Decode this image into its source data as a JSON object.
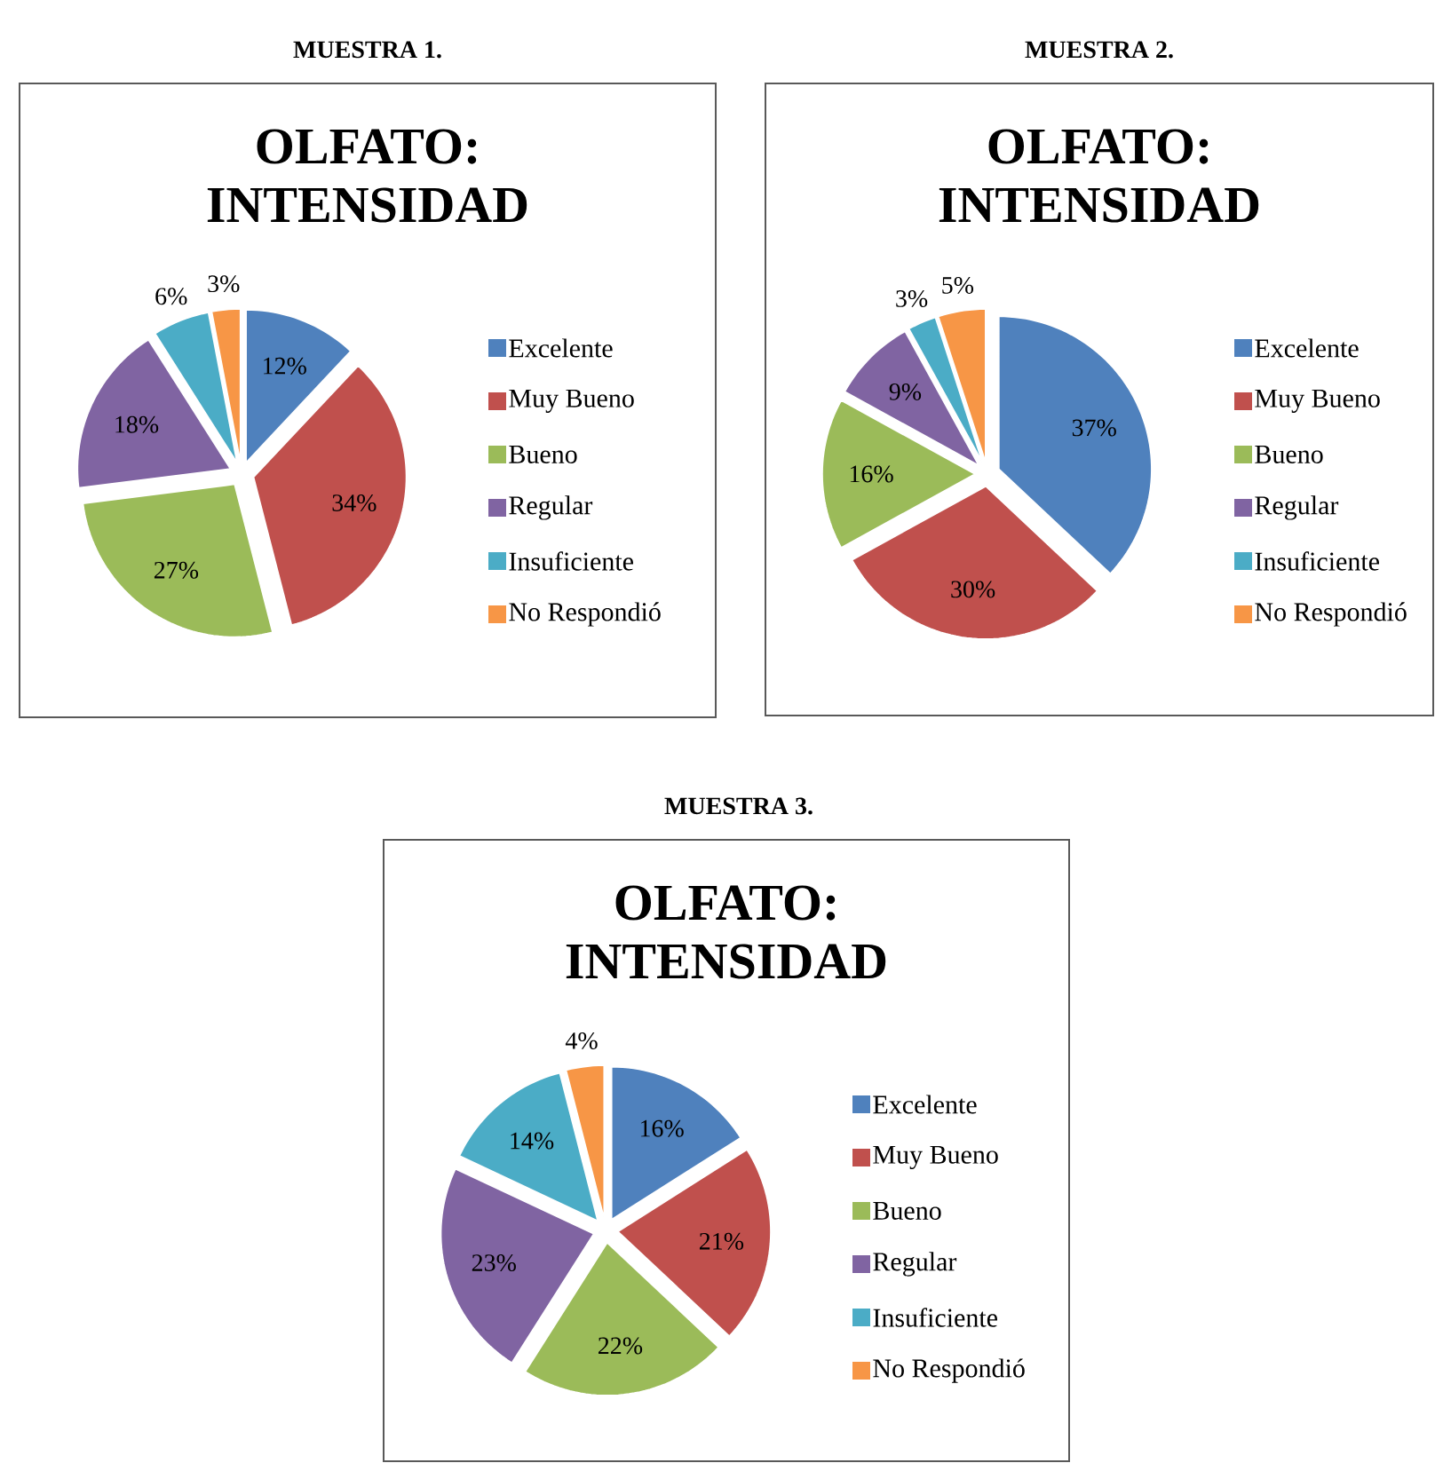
{
  "chart_data": [
    {
      "type": "pie",
      "title": "MUESTRA 1.",
      "subtitle": "OLFATO: INTENSIDAD",
      "categories": [
        "Excelente",
        "Muy Bueno",
        "Bueno",
        "Regular",
        "Insuficiente",
        "No Respondió"
      ],
      "values": [
        12,
        34,
        27,
        18,
        6,
        3
      ],
      "value_labels": [
        "12%",
        "34%",
        "27%",
        "18%",
        "6%",
        "3%"
      ],
      "colors": [
        "#4f81bd",
        "#c0504d",
        "#9bbb59",
        "#8064a2",
        "#4bacc6",
        "#f79646"
      ],
      "legend": "right"
    },
    {
      "type": "pie",
      "title": "MUESTRA 2.",
      "subtitle": "OLFATO: INTENSIDAD",
      "categories": [
        "Excelente",
        "Muy Bueno",
        "Bueno",
        "Regular",
        "Insuficiente",
        "No Respondió"
      ],
      "values": [
        37,
        30,
        16,
        9,
        3,
        5
      ],
      "value_labels": [
        "37%",
        "30%",
        "16%",
        "9%",
        "3%",
        "5%"
      ],
      "colors": [
        "#4f81bd",
        "#c0504d",
        "#9bbb59",
        "#8064a2",
        "#4bacc6",
        "#f79646"
      ],
      "legend": "right"
    },
    {
      "type": "pie",
      "title": "MUESTRA 3.",
      "subtitle": "OLFATO: INTENSIDAD",
      "categories": [
        "Excelente",
        "Muy Bueno",
        "Bueno",
        "Regular",
        "Insuficiente",
        "No Respondió"
      ],
      "values": [
        16,
        21,
        22,
        23,
        14,
        4
      ],
      "value_labels": [
        "16%",
        "21%",
        "22%",
        "23%",
        "14%",
        "4%"
      ],
      "colors": [
        "#4f81bd",
        "#c0504d",
        "#9bbb59",
        "#8064a2",
        "#4bacc6",
        "#f79646"
      ],
      "legend": "right"
    }
  ]
}
